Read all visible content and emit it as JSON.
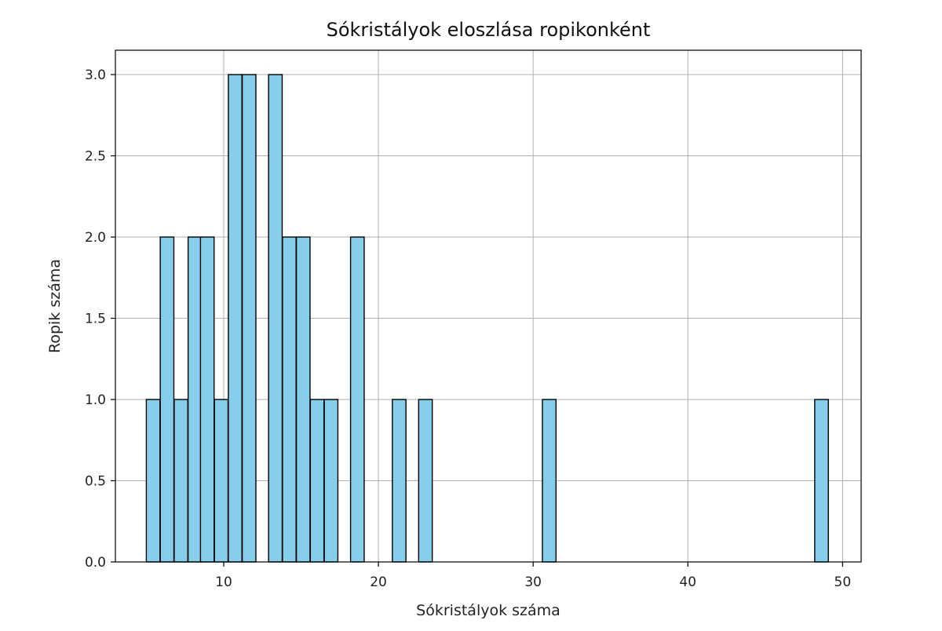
{
  "chart_data": {
    "type": "bar",
    "subtype": "histogram",
    "title": "Sókristályok eloszlása ropikonként",
    "xlabel": "Sókristályok száma",
    "ylabel": "Ropik száma",
    "xlim": [
      3,
      51.2
    ],
    "ylim": [
      0,
      3.15
    ],
    "xticks": [
      10,
      20,
      30,
      40,
      50
    ],
    "yticks": [
      0.0,
      0.5,
      1.0,
      1.5,
      2.0,
      2.5,
      3.0
    ],
    "ytick_labels": [
      "0.0",
      "0.5",
      "1.0",
      "1.5",
      "2.0",
      "2.5",
      "3.0"
    ],
    "grid": true,
    "bar_color": "#87CEEB",
    "edge_color": "#000000",
    "bin_width": 0.88,
    "bins": [
      {
        "x": 5.0,
        "count": 1
      },
      {
        "x": 5.9,
        "count": 2
      },
      {
        "x": 6.8,
        "count": 1
      },
      {
        "x": 7.7,
        "count": 2
      },
      {
        "x": 8.5,
        "count": 2
      },
      {
        "x": 9.4,
        "count": 1
      },
      {
        "x": 10.3,
        "count": 3
      },
      {
        "x": 11.2,
        "count": 3
      },
      {
        "x": 12.9,
        "count": 3
      },
      {
        "x": 13.8,
        "count": 2
      },
      {
        "x": 14.7,
        "count": 2
      },
      {
        "x": 15.6,
        "count": 1
      },
      {
        "x": 16.5,
        "count": 1
      },
      {
        "x": 18.2,
        "count": 2
      },
      {
        "x": 20.9,
        "count": 1
      },
      {
        "x": 22.6,
        "count": 1
      },
      {
        "x": 30.6,
        "count": 1
      },
      {
        "x": 48.2,
        "count": 1
      }
    ]
  }
}
